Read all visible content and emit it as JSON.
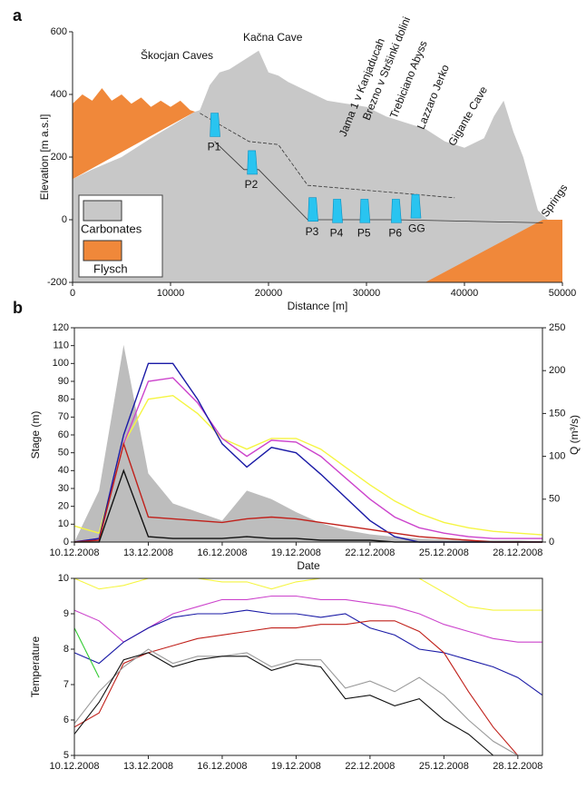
{
  "chart_data": [
    {
      "type": "profile",
      "title": "a",
      "xlabel": "Distance [m]",
      "ylabel": "Elevation [m a.s.l]",
      "xlim": [
        0,
        50000
      ],
      "ylim": [
        -200,
        600
      ],
      "xticks": [
        0,
        10000,
        20000,
        30000,
        40000,
        50000
      ],
      "yticks": [
        -200,
        0,
        200,
        400,
        600
      ],
      "legend": "lower left",
      "series": [
        {
          "name": "Carbonates",
          "color": "#c8c8c8",
          "x": [
            0,
            0,
            2000,
            5000,
            8000,
            12500,
            13000,
            14000,
            15000,
            16000,
            17000,
            18000,
            19000,
            20000,
            21000,
            22000,
            24000,
            26000,
            28000,
            30000,
            32000,
            34000,
            36000,
            38000,
            40000,
            42000,
            43000,
            44000,
            45000,
            46000,
            47500,
            48500,
            50000,
            50000
          ],
          "y": [
            -200,
            130,
            160,
            200,
            260,
            345,
            350,
            430,
            470,
            480,
            500,
            520,
            540,
            470,
            460,
            440,
            410,
            380,
            370,
            360,
            330,
            310,
            290,
            250,
            230,
            260,
            330,
            380,
            280,
            200,
            30,
            0,
            0,
            -200
          ]
        },
        {
          "name": "Flysch",
          "color": "#f0883a",
          "x": [
            0,
            0,
            1000,
            2000,
            3000,
            4000,
            5000,
            6000,
            7000,
            8000,
            9000,
            10000,
            11000,
            12000,
            12500,
            null,
            36000,
            48000,
            50000,
            50000
          ],
          "y": [
            130,
            370,
            400,
            380,
            420,
            380,
            400,
            370,
            390,
            360,
            380,
            360,
            380,
            350,
            345,
            null,
            -200,
            0,
            0,
            -200
          ]
        }
      ],
      "water_levels": [
        {
          "x": [
            13000,
            18000,
            21000,
            24000,
            39000
          ],
          "y": [
            340,
            250,
            240,
            110,
            70
          ]
        },
        {
          "x": [
            14500,
            17500,
            19000,
            24000,
            33000,
            48000
          ],
          "y": [
            250,
            160,
            160,
            0,
            0,
            -10
          ]
        }
      ],
      "caves": {
        "color": "#29c4f0",
        "labels": [
          "P1",
          "P2",
          "P3",
          "P4",
          "P5",
          "P6",
          "GG"
        ],
        "x": [
          14500,
          18300,
          24500,
          27000,
          29800,
          33000,
          35000
        ],
        "y": [
          300,
          180,
          30,
          25,
          25,
          25,
          40
        ]
      },
      "annotations": [
        "Škocjan Caves",
        "Kačna Cave",
        "Jama 1 v Kanjaducah",
        "Brezno v Stršinki dolini",
        "Trebiciano Abyss",
        "Lazzaro Jerko",
        "Gigante Cave",
        "Springs"
      ]
    },
    {
      "type": "hydrograph",
      "title": "b",
      "xlabel": "Date",
      "ylabel": "Stage (m)",
      "y2label": "Q (m³/s)",
      "x": [
        "2008-12-10",
        "2008-12-11",
        "2008-12-12",
        "2008-12-13",
        "2008-12-14",
        "2008-12-15",
        "2008-12-16",
        "2008-12-17",
        "2008-12-18",
        "2008-12-19",
        "2008-12-20",
        "2008-12-21",
        "2008-12-22",
        "2008-12-23",
        "2008-12-24",
        "2008-12-25",
        "2008-12-26",
        "2008-12-27",
        "2008-12-28",
        "2008-12-29"
      ],
      "xlim": [
        "2008-12-10",
        "2008-12-29"
      ],
      "ylim": [
        0,
        120
      ],
      "y2lim": [
        0,
        250
      ],
      "xticks": [
        {
          "value": "2008-12-10",
          "label": "10.12.2008"
        },
        {
          "value": "2008-12-13",
          "label": "13.12.2008"
        },
        {
          "value": "2008-12-16",
          "label": "16.12.2008"
        },
        {
          "value": "2008-12-19",
          "label": "19.12.2008"
        },
        {
          "value": "2008-12-22",
          "label": "22.12.2008"
        },
        {
          "value": "2008-12-25",
          "label": "25.12.2008"
        },
        {
          "value": "2008-12-28",
          "label": "28.12.2008"
        }
      ],
      "yticks": [
        0,
        10,
        20,
        30,
        40,
        50,
        60,
        70,
        80,
        90,
        100,
        110,
        120
      ],
      "y2ticks": [
        0,
        50,
        100,
        150,
        200,
        250
      ],
      "series": [
        {
          "color": "#bdbdbd",
          "axis": "y2",
          "values": [
            0,
            60,
            230,
            80,
            45,
            35,
            25,
            60,
            50,
            35,
            22,
            14,
            9,
            6,
            4,
            3,
            2,
            2,
            2,
            1
          ]
        },
        {
          "color": "#f5f542",
          "values": [
            9,
            5,
            55,
            80,
            82,
            72,
            58,
            52,
            58,
            58,
            52,
            42,
            32,
            23,
            16,
            11,
            8,
            6,
            5,
            4
          ]
        },
        {
          "color": "#cc44cc",
          "values": [
            0,
            2,
            55,
            90,
            92,
            78,
            58,
            48,
            57,
            56,
            48,
            36,
            24,
            14,
            8,
            5,
            3,
            2,
            2,
            2
          ]
        },
        {
          "color": "#1a1aa6",
          "values": [
            0,
            2,
            60,
            100,
            100,
            80,
            55,
            42,
            53,
            50,
            38,
            25,
            12,
            3,
            0,
            0,
            0,
            0,
            0,
            0
          ]
        },
        {
          "color": "#c0201a",
          "values": [
            0,
            1,
            55,
            14,
            13,
            12,
            11,
            13,
            14,
            13,
            11,
            9,
            7,
            5,
            3,
            2,
            1,
            0,
            0,
            0
          ]
        },
        {
          "color": "#111111",
          "values": [
            0,
            0,
            40,
            3,
            2,
            2,
            2,
            3,
            2,
            2,
            1,
            1,
            1,
            0,
            0,
            0,
            0,
            0,
            0,
            0
          ]
        }
      ]
    },
    {
      "type": "line",
      "ylabel": "Temperature",
      "x": [
        "2008-12-10",
        "2008-12-11",
        "2008-12-12",
        "2008-12-13",
        "2008-12-14",
        "2008-12-15",
        "2008-12-16",
        "2008-12-17",
        "2008-12-18",
        "2008-12-19",
        "2008-12-20",
        "2008-12-21",
        "2008-12-22",
        "2008-12-23",
        "2008-12-24",
        "2008-12-25",
        "2008-12-26",
        "2008-12-27",
        "2008-12-28",
        "2008-12-29"
      ],
      "xlim": [
        "2008-12-10",
        "2008-12-29"
      ],
      "ylim": [
        5,
        10
      ],
      "xticks": [
        {
          "value": "2008-12-10",
          "label": "10.12.2008"
        },
        {
          "value": "2008-12-13",
          "label": "13.12.2008"
        },
        {
          "value": "2008-12-16",
          "label": "16.12.2008"
        },
        {
          "value": "2008-12-19",
          "label": "19.12.2008"
        },
        {
          "value": "2008-12-22",
          "label": "22.12.2008"
        },
        {
          "value": "2008-12-25",
          "label": "25.12.2008"
        },
        {
          "value": "2008-12-28",
          "label": "28.12.2008"
        }
      ],
      "yticks": [
        5,
        6,
        7,
        8,
        9,
        10
      ],
      "series": [
        {
          "color": "#f5f542",
          "values": [
            10,
            9.7,
            9.8,
            10,
            10,
            10,
            9.9,
            9.9,
            9.7,
            9.9,
            10,
            10,
            10,
            10,
            10,
            9.6,
            9.2,
            9.1,
            9.1,
            9.1
          ]
        },
        {
          "color": "#cc44cc",
          "values": [
            9.1,
            8.8,
            8.2,
            8.6,
            9.0,
            9.2,
            9.4,
            9.4,
            9.5,
            9.5,
            9.4,
            9.4,
            9.3,
            9.2,
            9.0,
            8.7,
            8.5,
            8.3,
            8.2,
            8.2
          ]
        },
        {
          "color": "#1a1aa6",
          "values": [
            7.9,
            7.6,
            8.2,
            8.6,
            8.9,
            9.0,
            9.0,
            9.1,
            9.0,
            9.0,
            8.9,
            9.0,
            8.6,
            8.4,
            8.0,
            7.9,
            7.7,
            7.5,
            7.2,
            6.7
          ]
        },
        {
          "color": "#c0201a",
          "values": [
            5.8,
            6.2,
            7.6,
            7.9,
            8.1,
            8.3,
            8.4,
            8.5,
            8.6,
            8.6,
            8.7,
            8.7,
            8.8,
            8.8,
            8.5,
            7.9,
            6.8,
            5.8,
            5.0,
            null
          ]
        },
        {
          "color": "#999999",
          "values": [
            5.9,
            6.8,
            7.5,
            8.0,
            7.6,
            7.8,
            7.8,
            7.9,
            7.5,
            7.7,
            7.7,
            6.9,
            7.1,
            6.8,
            7.2,
            6.7,
            6.0,
            5.4,
            5.0,
            null
          ]
        },
        {
          "color": "#111111",
          "values": [
            5.6,
            6.5,
            7.7,
            7.9,
            7.5,
            7.7,
            7.8,
            7.8,
            7.4,
            7.6,
            7.5,
            6.6,
            6.7,
            6.4,
            6.6,
            6.0,
            5.6,
            5.0,
            null,
            null
          ]
        },
        {
          "color": "#33cc33",
          "values": [
            8.6,
            7.2,
            null,
            null,
            null,
            null,
            null,
            null,
            null,
            null,
            null,
            null,
            null,
            null,
            null,
            null,
            null,
            null,
            null,
            null
          ]
        }
      ]
    }
  ]
}
